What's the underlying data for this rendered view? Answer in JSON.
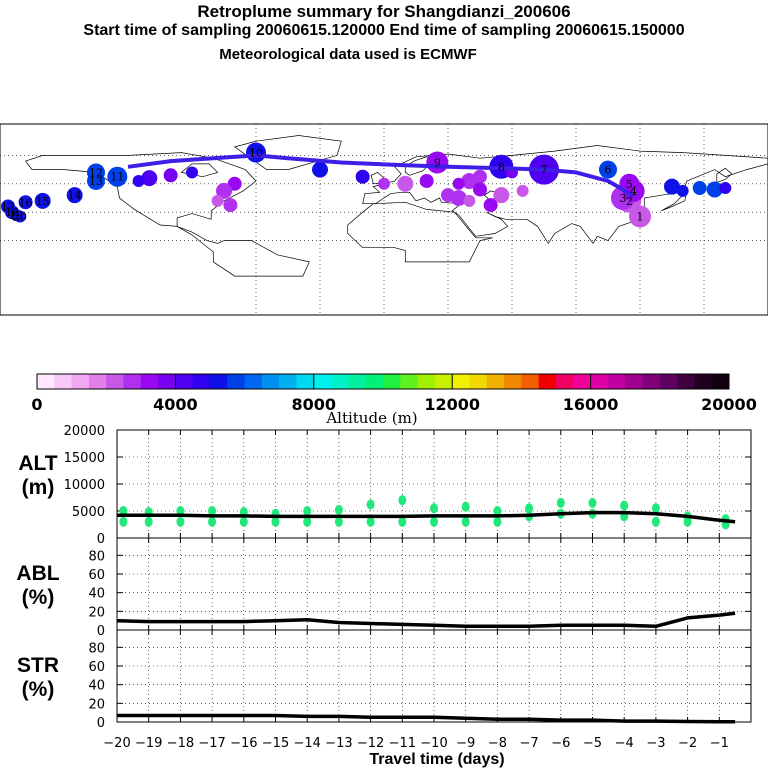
{
  "header": {
    "title": "Retroplume summary for Shangdianzi_200606",
    "sampling": "Start time of sampling 20060615.120000     End time of sampling 20060615.150000",
    "met": "Meteorological data used is ECMWF"
  },
  "colors": {
    "path": "#3f1fe8",
    "alt_cluster": "#21e87a",
    "line": "#000000",
    "grid": "#000000"
  },
  "chart_data": [
    {
      "type": "map",
      "name": "retroplume-map",
      "description_labels": [
        "1",
        "2",
        "3",
        "4",
        "5",
        "6",
        "7",
        "8",
        "9",
        "10",
        "11",
        "12",
        "13",
        "14",
        "15",
        "16",
        "17",
        "18",
        "19",
        "20"
      ],
      "clusters": [
        {
          "label": "1",
          "lon": 120,
          "lat": 27,
          "alt_m": 2000
        },
        {
          "label": "2",
          "lon": 115,
          "lat": 38,
          "alt_m": 2000
        },
        {
          "label": "3",
          "lon": 112,
          "lat": 40,
          "alt_m": 2500
        },
        {
          "label": "4",
          "lon": 117,
          "lat": 45,
          "alt_m": 3000
        },
        {
          "label": "5",
          "lon": 115,
          "lat": 50,
          "alt_m": 3000
        },
        {
          "label": "6",
          "lon": 105,
          "lat": 60,
          "alt_m": 5500
        },
        {
          "label": "7",
          "lon": 75,
          "lat": 60,
          "alt_m": 4000
        },
        {
          "label": "8",
          "lon": 55,
          "lat": 62,
          "alt_m": 4500
        },
        {
          "label": "9",
          "lon": 25,
          "lat": 65,
          "alt_m": 3000
        },
        {
          "label": "10",
          "lon": -60,
          "lat": 72,
          "alt_m": 5000
        },
        {
          "label": "11",
          "lon": -125,
          "lat": 55,
          "alt_m": 5500
        },
        {
          "label": "12",
          "lon": -135,
          "lat": 58,
          "alt_m": 5500
        },
        {
          "label": "13",
          "lon": -135,
          "lat": 52,
          "alt_m": 5500
        },
        {
          "label": "14",
          "lon": -145,
          "lat": 42,
          "alt_m": 5000
        },
        {
          "label": "15",
          "lon": -160,
          "lat": 38,
          "alt_m": 5000
        },
        {
          "label": "16",
          "lon": -168,
          "lat": 37,
          "alt_m": 5000
        },
        {
          "label": "17",
          "lon": -180,
          "lat": 34,
          "alt_m": 5000
        },
        {
          "label": "18",
          "lon": -180,
          "lat": 30,
          "alt_m": 5000
        },
        {
          "label": "19",
          "lon": -178,
          "lat": 28,
          "alt_m": 5000
        },
        {
          "label": "20",
          "lon": -175,
          "lat": 27,
          "alt_m": 5000
        }
      ]
    },
    {
      "type": "colorbar",
      "name": "altitude-colorbar",
      "title": "Altitude (m)",
      "tick_labels": [
        "0",
        "4000",
        "8000",
        "12000",
        "16000",
        "20000"
      ],
      "range": [
        0,
        20000
      ],
      "colors": [
        "#ffe8ff",
        "#f8c8f8",
        "#f0a8f0",
        "#e080e8",
        "#c858e8",
        "#b030f0",
        "#9808f0",
        "#7800f0",
        "#5000f0",
        "#3000f0",
        "#1010e8",
        "#0040e8",
        "#0068f0",
        "#0090f0",
        "#00b0f0",
        "#00d8f0",
        "#00f0f0",
        "#00f0c8",
        "#00f0a0",
        "#00f078",
        "#20f040",
        "#60f020",
        "#a0f000",
        "#c8f000",
        "#f0f000",
        "#f0d800",
        "#f0b000",
        "#f08800",
        "#f06000",
        "#f00000",
        "#f00060",
        "#f00098",
        "#e000a8",
        "#c000a0",
        "#a00090",
        "#800078",
        "#600060",
        "#400040",
        "#200020",
        "#100010"
      ]
    },
    {
      "type": "line",
      "name": "alt-panel",
      "ylabel": "ALT\n(m)",
      "ylabel_lines": [
        "ALT",
        "(m)"
      ],
      "ylim": [
        0,
        20000
      ],
      "yticks": [
        0,
        5000,
        10000,
        15000,
        20000
      ],
      "ytick_labels": [
        "0",
        "5000",
        "10000",
        "15000",
        "20000"
      ],
      "x": [
        -20,
        -19,
        -18,
        -17,
        -16,
        -15,
        -14,
        -13,
        -12,
        -11,
        -10,
        -9,
        -8,
        -7,
        -6,
        -5,
        -4,
        -3,
        -2,
        -1,
        -0.5
      ],
      "y": [
        4200,
        4200,
        4200,
        4100,
        4100,
        4000,
        4000,
        4000,
        4000,
        4000,
        4100,
        4100,
        4100,
        4200,
        4500,
        4700,
        4700,
        4500,
        4000,
        3300,
        3000
      ],
      "cluster_points": [
        {
          "x": -19.8,
          "y": 3000
        },
        {
          "x": -19.8,
          "y": 5000
        },
        {
          "x": -19,
          "y": 3000
        },
        {
          "x": -19,
          "y": 4800
        },
        {
          "x": -18,
          "y": 3000
        },
        {
          "x": -18,
          "y": 5000
        },
        {
          "x": -17,
          "y": 3000
        },
        {
          "x": -17,
          "y": 5000
        },
        {
          "x": -16,
          "y": 3000
        },
        {
          "x": -16,
          "y": 4800
        },
        {
          "x": -15,
          "y": 3000
        },
        {
          "x": -15,
          "y": 4500
        },
        {
          "x": -14,
          "y": 3000
        },
        {
          "x": -14,
          "y": 5000
        },
        {
          "x": -13,
          "y": 3000
        },
        {
          "x": -13,
          "y": 5200
        },
        {
          "x": -12,
          "y": 3000
        },
        {
          "x": -12,
          "y": 6200
        },
        {
          "x": -11,
          "y": 3000
        },
        {
          "x": -11,
          "y": 7000
        },
        {
          "x": -10,
          "y": 3000
        },
        {
          "x": -10,
          "y": 5500
        },
        {
          "x": -9,
          "y": 3000
        },
        {
          "x": -9,
          "y": 5800
        },
        {
          "x": -8,
          "y": 3000
        },
        {
          "x": -8,
          "y": 5000
        },
        {
          "x": -7,
          "y": 4000
        },
        {
          "x": -7,
          "y": 5500
        },
        {
          "x": -6,
          "y": 4500
        },
        {
          "x": -6,
          "y": 6500
        },
        {
          "x": -5,
          "y": 4500
        },
        {
          "x": -5,
          "y": 6500
        },
        {
          "x": -4,
          "y": 4000
        },
        {
          "x": -4,
          "y": 6000
        },
        {
          "x": -3,
          "y": 3000
        },
        {
          "x": -3,
          "y": 5500
        },
        {
          "x": -2,
          "y": 3000
        },
        {
          "x": -2,
          "y": 4000
        },
        {
          "x": -0.8,
          "y": 2500
        },
        {
          "x": -0.8,
          "y": 3500
        }
      ]
    },
    {
      "type": "line",
      "name": "abl-panel",
      "ylabel_lines": [
        "ABL",
        "(%)"
      ],
      "ylim": [
        0,
        90
      ],
      "yticks": [
        0,
        20,
        40,
        60,
        80
      ],
      "ytick_labels": [
        "0",
        "20",
        "40",
        "60",
        "80"
      ],
      "x": [
        -20,
        -19,
        -18,
        -17,
        -16,
        -15,
        -14,
        -13,
        -12,
        -11,
        -10,
        -9,
        -8,
        -7,
        -6,
        -5,
        -4,
        -3,
        -2,
        -1,
        -0.5
      ],
      "y": [
        10,
        9,
        9,
        9,
        9,
        10,
        11,
        8,
        7,
        6,
        5,
        4,
        4,
        4,
        5,
        5,
        5,
        4,
        13,
        16,
        18
      ]
    },
    {
      "type": "line",
      "name": "str-panel",
      "ylabel_lines": [
        "STR",
        "(%)"
      ],
      "ylim": [
        0,
        90
      ],
      "yticks": [
        0,
        20,
        40,
        60,
        80
      ],
      "ytick_labels": [
        "0",
        "20",
        "40",
        "60",
        "80"
      ],
      "x": [
        -20,
        -19,
        -18,
        -17,
        -16,
        -15,
        -14,
        -13,
        -12,
        -11,
        -10,
        -9,
        -8,
        -7,
        -6,
        -5,
        -4,
        -3,
        -2,
        -1,
        -0.5
      ],
      "y": [
        7,
        7,
        7,
        7,
        7,
        7,
        6,
        6,
        5,
        5,
        5,
        4,
        3,
        3,
        2,
        2,
        1,
        1,
        0.5,
        0.3,
        0.2
      ]
    },
    {
      "type": "axis",
      "name": "travel-time-axis",
      "xlabel": "Travel time (days)",
      "xlim": [
        -20,
        0
      ],
      "xticks": [
        -20,
        -19,
        -18,
        -17,
        -16,
        -15,
        -14,
        -13,
        -12,
        -11,
        -10,
        -9,
        -8,
        -7,
        -6,
        -5,
        -4,
        -3,
        -2,
        -1
      ],
      "xtick_labels": [
        "−20",
        "−19",
        "−18",
        "−17",
        "−16",
        "−15",
        "−14",
        "−13",
        "−12",
        "−11",
        "−10",
        "−9",
        "−8",
        "−7",
        "−6",
        "−5",
        "−4",
        "−3",
        "−2",
        "−1"
      ]
    }
  ]
}
